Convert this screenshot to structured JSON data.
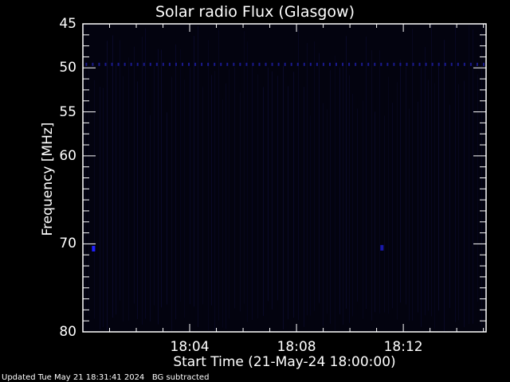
{
  "chart_data": {
    "type": "heatmap",
    "title": "Solar radio Flux (Glasgow)",
    "xlabel": "Start Time (21-May-24 18:00:00)",
    "ylabel": "Frequency [MHz]",
    "x_tick_labels": [
      "18:04",
      "18:08",
      "18:12"
    ],
    "x_ticks_min": [
      4,
      8,
      12
    ],
    "xlim_min": [
      0,
      15.1
    ],
    "y_tick_labels": [
      "45",
      "50",
      "55",
      "60",
      "70",
      "80"
    ],
    "y_ticks": [
      45,
      50,
      55,
      60,
      70,
      80
    ],
    "ylim": [
      45,
      80
    ],
    "y_inverted": true,
    "background_color": "#03030f",
    "features": [
      {
        "name": "interference line",
        "freq_mhz": 49.6,
        "time_min": [
          0,
          15.1
        ],
        "color": "#1a1a8c"
      },
      {
        "name": "spot",
        "freq_mhz": 70.5,
        "time_min": 0.4,
        "color": "#2020ff"
      },
      {
        "name": "spot",
        "freq_mhz": 70.4,
        "time_min": 11.2,
        "color": "#1818aa"
      }
    ]
  },
  "footer": {
    "updated": "Updated Tue May 21 18:31:41 2024",
    "note": "BG subtracted"
  }
}
